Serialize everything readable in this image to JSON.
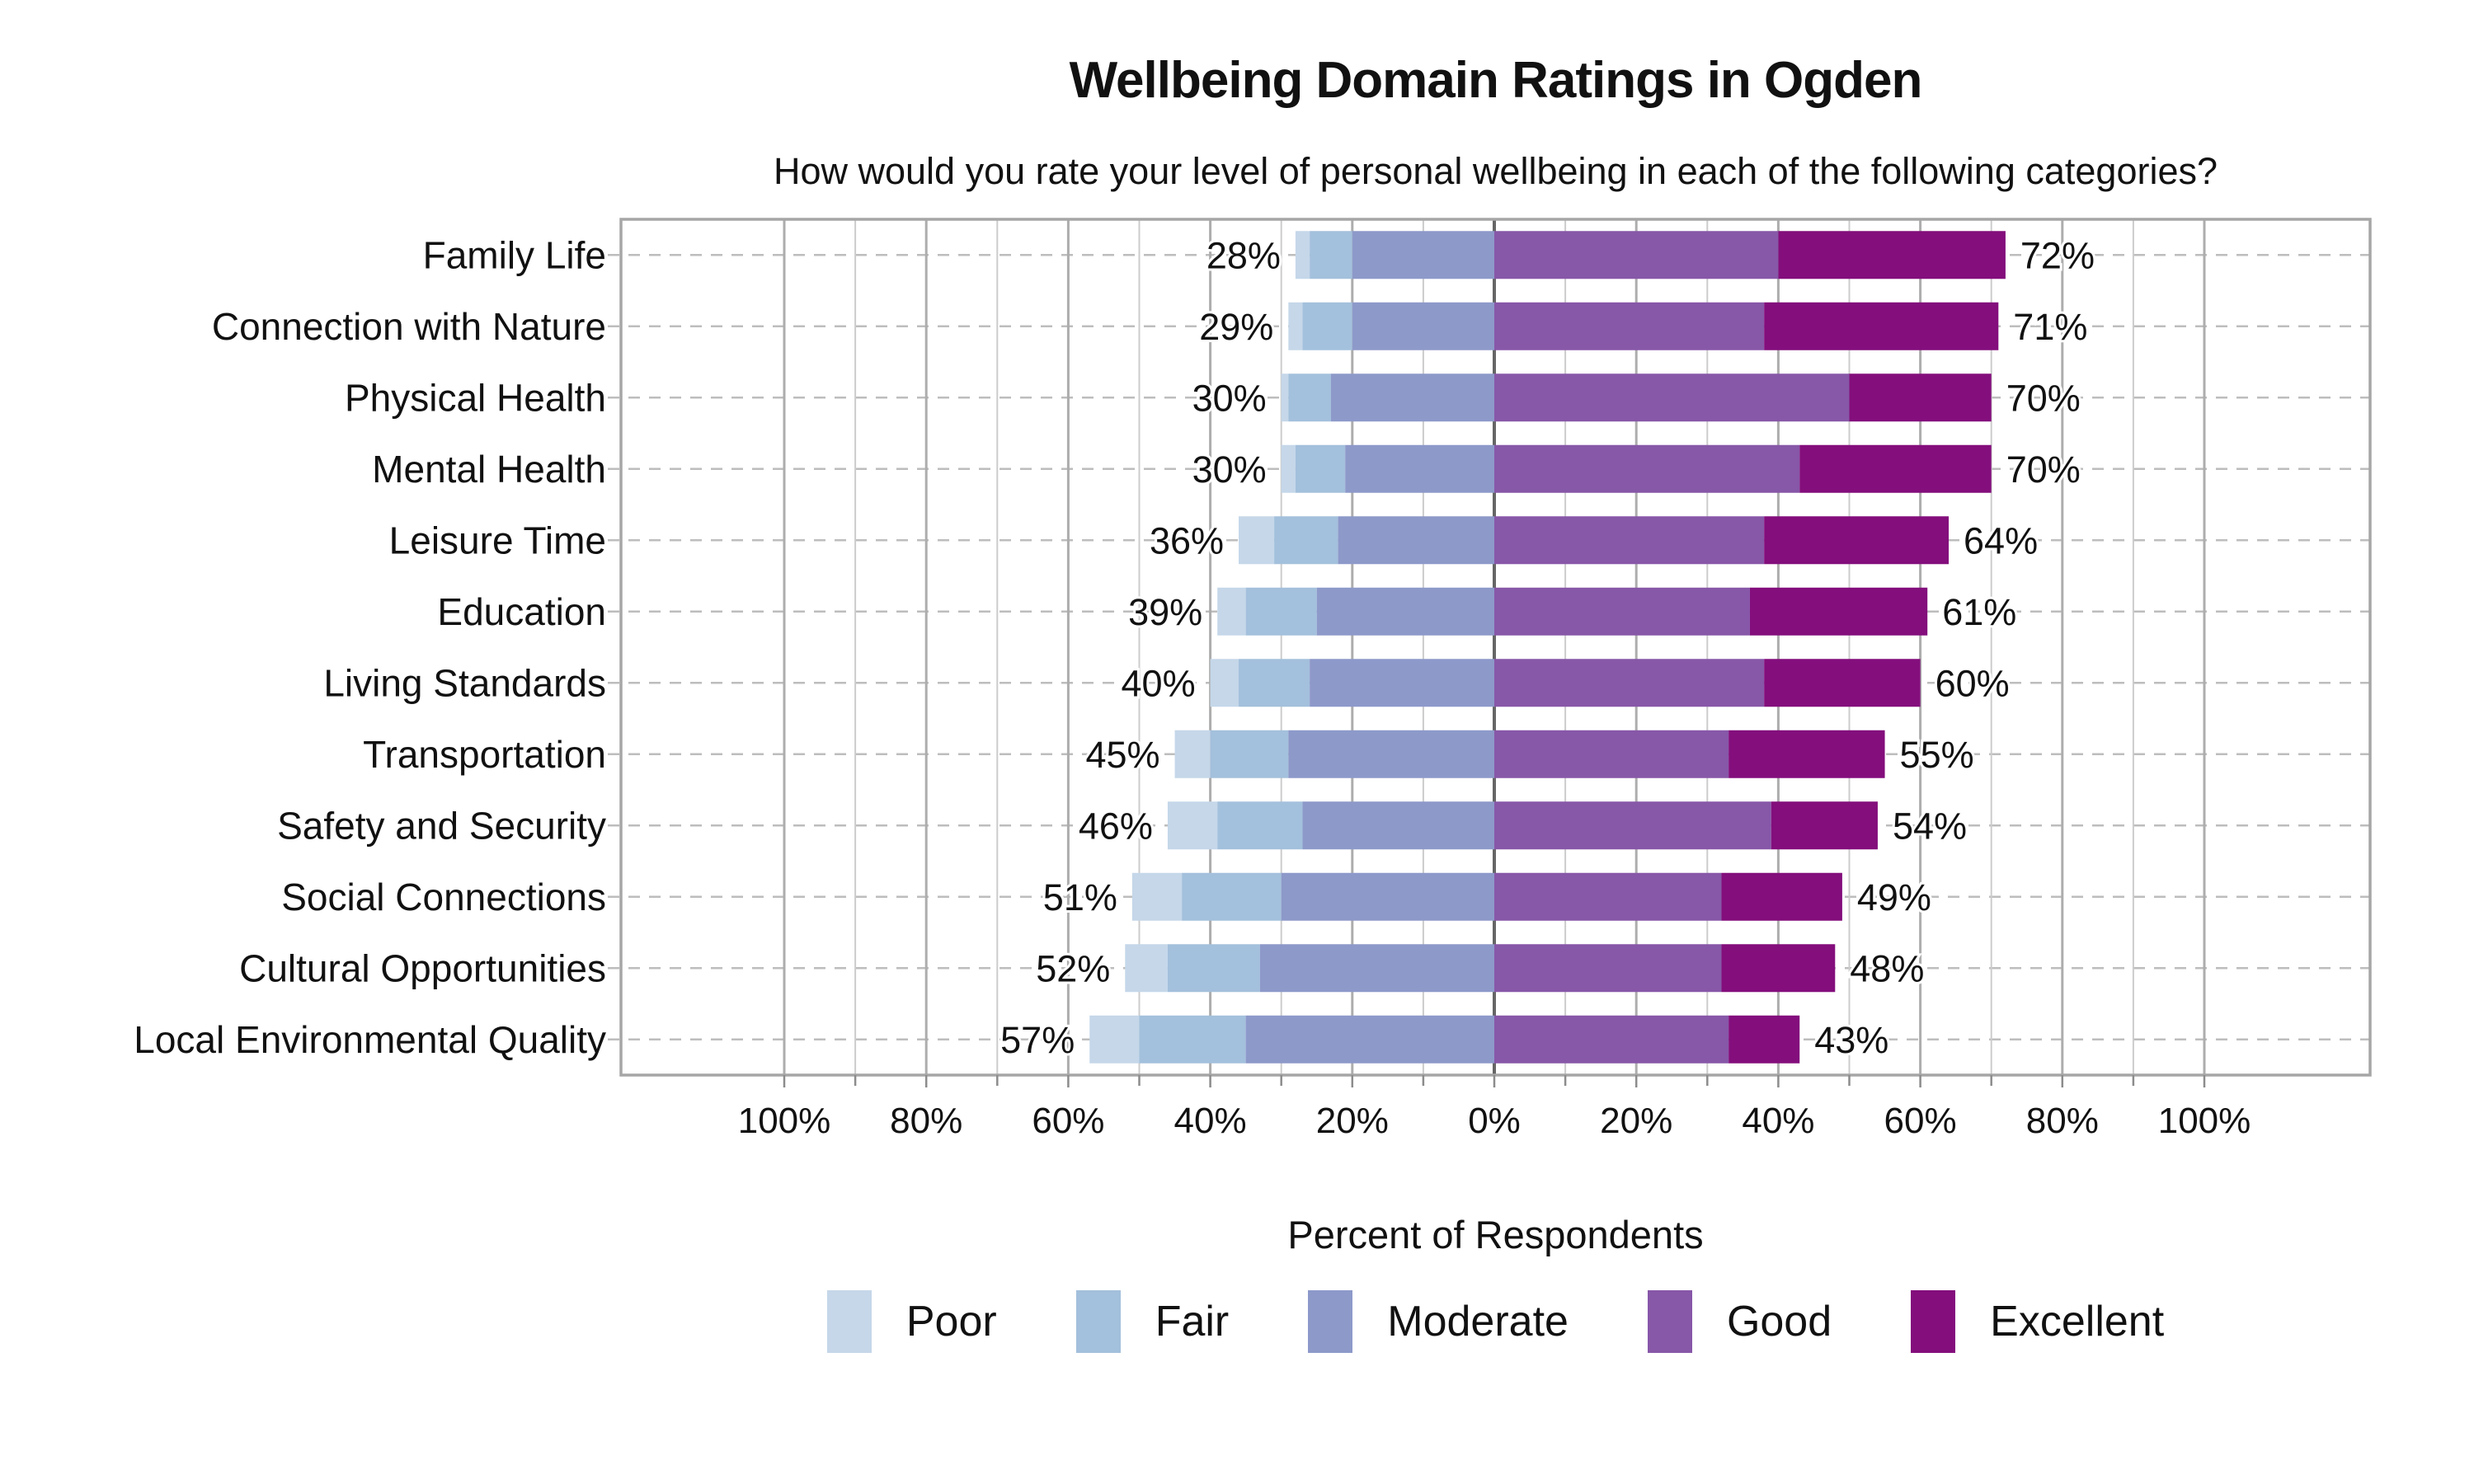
{
  "chart_data": {
    "type": "bar",
    "variant": "diverging_stacked_bar",
    "title": "Wellbeing Domain Ratings in Ogden",
    "subtitle": "How would you rate your level of personal wellbeing in each of the following categories?",
    "xlabel": "Percent of Respondents",
    "ylabel": "",
    "xlim": [
      -123,
      123
    ],
    "grid": "on",
    "legend_position": "bottom",
    "categories": [
      "Family Life",
      "Connection with Nature",
      "Physical Health",
      "Mental Health",
      "Leisure Time",
      "Education",
      "Living Standards",
      "Transportation",
      "Safety and Security",
      "Social Connections",
      "Cultural Opportunities",
      "Local Environmental Quality"
    ],
    "series": [
      {
        "name": "Poor",
        "color": "#c5d7e9",
        "side": "negative",
        "values": [
          2,
          2,
          1,
          2,
          5,
          4,
          4,
          5,
          7,
          7,
          6,
          7
        ]
      },
      {
        "name": "Fair",
        "color": "#a3c0dc",
        "side": "negative",
        "values": [
          6,
          7,
          6,
          7,
          9,
          10,
          10,
          11,
          12,
          14,
          13,
          15
        ]
      },
      {
        "name": "Moderate",
        "color": "#8d99c9",
        "side": "negative",
        "values": [
          20,
          20,
          23,
          21,
          22,
          25,
          26,
          29,
          27,
          30,
          33,
          35
        ]
      },
      {
        "name": "Good",
        "color": "#8757a8",
        "side": "positive",
        "values": [
          40,
          38,
          50,
          43,
          38,
          36,
          38,
          33,
          39,
          32,
          32,
          33
        ]
      },
      {
        "name": "Excellent",
        "color": "#830e7c",
        "side": "positive",
        "values": [
          32,
          33,
          20,
          27,
          26,
          25,
          22,
          22,
          15,
          17,
          16,
          10
        ]
      }
    ],
    "left_totals": [
      "28%",
      "29%",
      "30%",
      "30%",
      "36%",
      "39%",
      "40%",
      "45%",
      "46%",
      "51%",
      "52%",
      "57%"
    ],
    "right_totals": [
      "72%",
      "71%",
      "70%",
      "70%",
      "64%",
      "61%",
      "60%",
      "55%",
      "54%",
      "49%",
      "48%",
      "43%"
    ],
    "major_ticks": [
      {
        "value": -100,
        "label": "100%"
      },
      {
        "value": -80,
        "label": "80%"
      },
      {
        "value": -60,
        "label": "60%"
      },
      {
        "value": -40,
        "label": "40%"
      },
      {
        "value": -20,
        "label": "20%"
      },
      {
        "value": 0,
        "label": "0%"
      },
      {
        "value": 20,
        "label": "20%"
      },
      {
        "value": 40,
        "label": "40%"
      },
      {
        "value": 60,
        "label": "60%"
      },
      {
        "value": 80,
        "label": "80%"
      },
      {
        "value": 100,
        "label": "100%"
      }
    ],
    "minor_tick_values": [
      -90,
      -70,
      -50,
      -30,
      -10,
      10,
      30,
      50,
      70,
      90
    ],
    "style": {
      "zero_line_color": "#666666",
      "major_grid_color": "#adadad",
      "minor_grid_color": "#cccccc",
      "row_dash_color": "#bdbdbd",
      "border_color": "#a6a6a6",
      "tick_color": "#8c8c8c",
      "text_color": "#111111",
      "background": "#ffffff"
    }
  }
}
